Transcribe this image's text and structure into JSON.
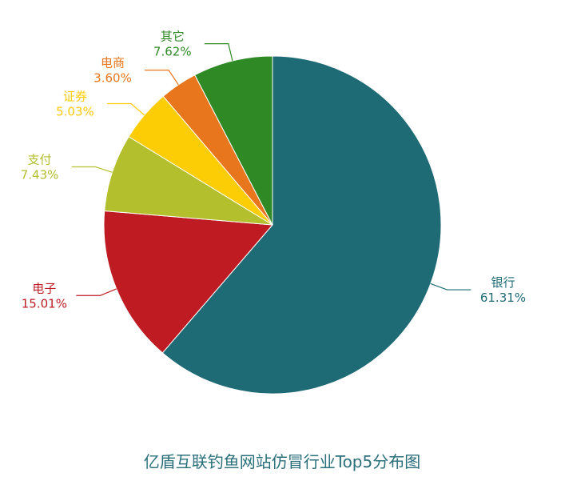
{
  "chart_data": {
    "type": "pie",
    "title": "亿盾互联钓鱼网站仿冒行业Top5分布图",
    "categories": [
      "银行",
      "电子",
      "支付",
      "证券",
      "电商",
      "其它"
    ],
    "values": [
      61.31,
      15.01,
      7.43,
      5.03,
      3.6,
      7.62
    ],
    "value_labels": [
      "61.31%",
      "15.01%",
      "7.43%",
      "5.03%",
      "3.60%",
      "7.62%"
    ],
    "colors": [
      "#1e6b75",
      "#be1b22",
      "#b3bf2d",
      "#fccc05",
      "#e8761d",
      "#2f8a26"
    ]
  }
}
